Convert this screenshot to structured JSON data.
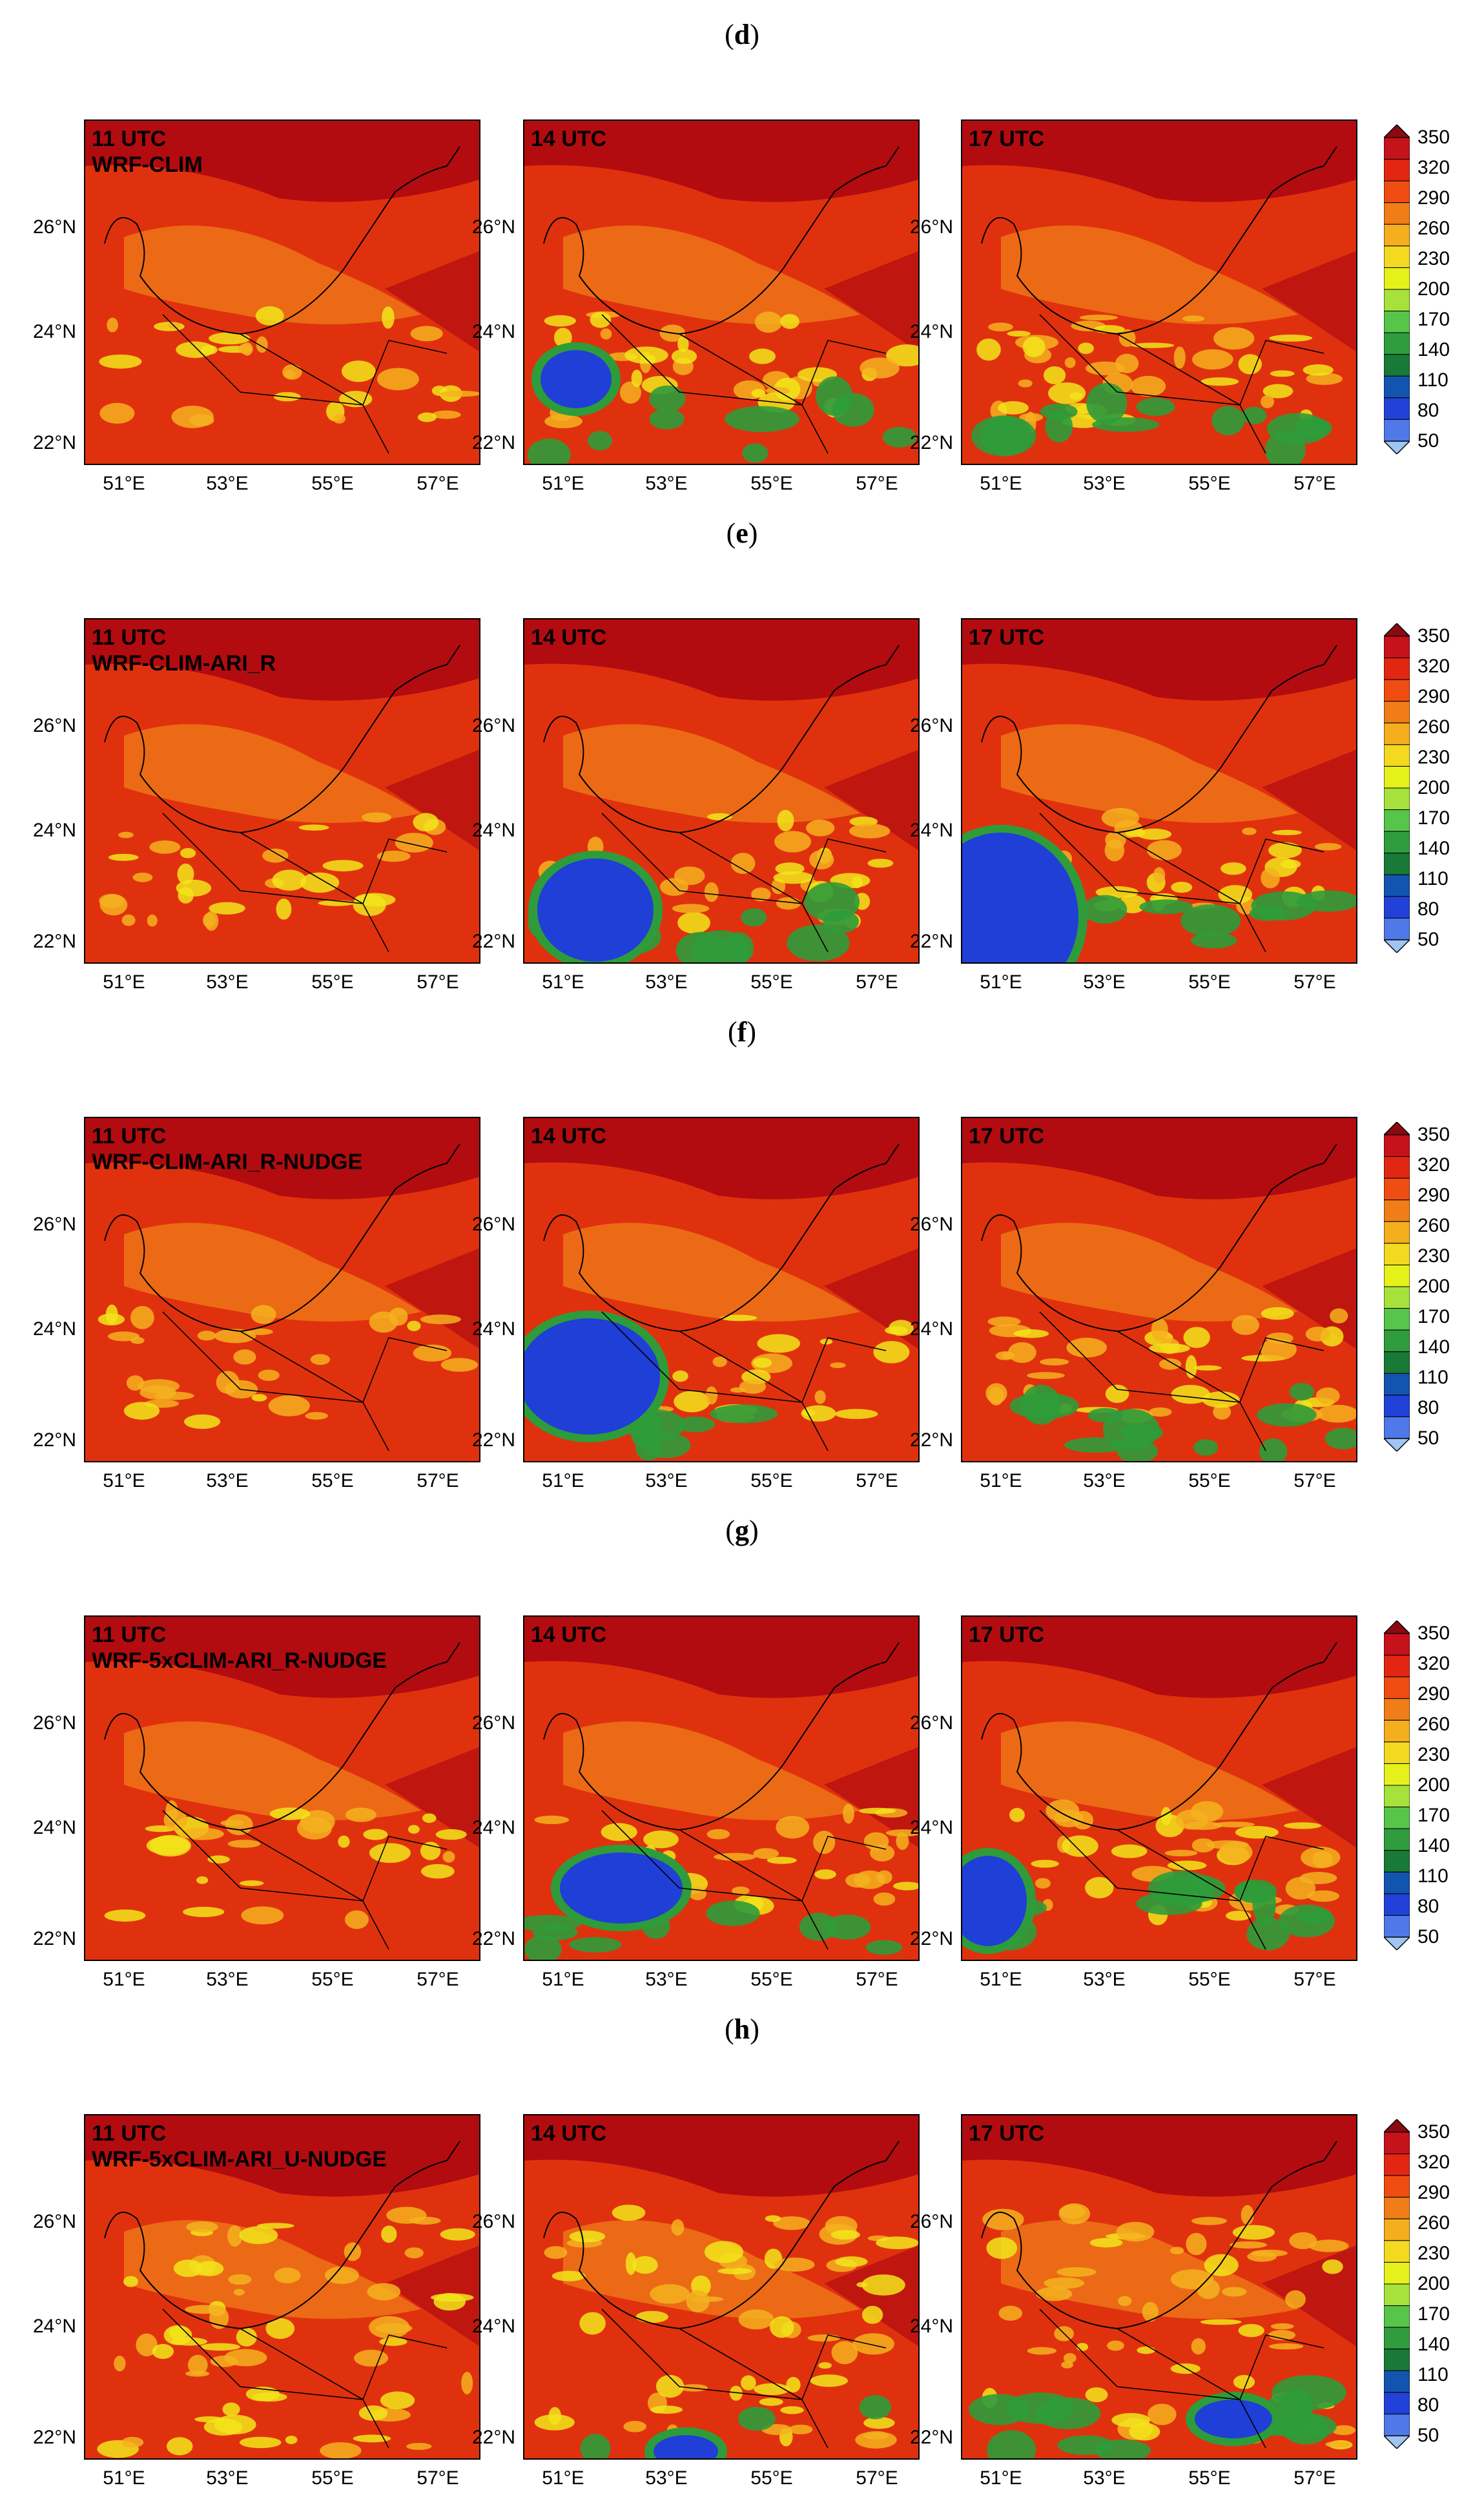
{
  "colors": {
    "warm": "#e0310e",
    "hot": "#a90610",
    "mid": "#ef5a16",
    "orange": "#f07d18",
    "yellow": "#f2e51a",
    "green": "#2e9c3a",
    "blue": "#1f3fd6",
    "lightblue": "#7fb5ec"
  },
  "colorbar": {
    "labels": [
      "350",
      "320",
      "290",
      "260",
      "230",
      "200",
      "170",
      "140",
      "110",
      "80",
      "50"
    ],
    "colors": [
      "#8b0a12",
      "#c5121b",
      "#e32612",
      "#ef4d12",
      "#f07d18",
      "#f5ae1e",
      "#f3da20",
      "#e6f11b",
      "#a6e23b",
      "#56c54a",
      "#2f9d3e",
      "#187a36",
      "#1255b0",
      "#2141d8",
      "#4f78e8",
      "#9fc6f2"
    ]
  },
  "axes": {
    "y_ticks": [
      "26°N",
      "24°N",
      "22°N"
    ],
    "x_ticks": [
      "51°E",
      "53°E",
      "55°E",
      "57°E"
    ]
  },
  "rows": [
    {
      "label": "d",
      "panels": [
        {
          "time": "11 UTC",
          "name": "WRF-CLIM"
        },
        {
          "time": "14 UTC",
          "name": ""
        },
        {
          "time": "17 UTC",
          "name": ""
        }
      ]
    },
    {
      "label": "e",
      "panels": [
        {
          "time": "11 UTC",
          "name": "WRF-CLIM-ARI_R"
        },
        {
          "time": "14 UTC",
          "name": ""
        },
        {
          "time": "17 UTC",
          "name": ""
        }
      ]
    },
    {
      "label": "f",
      "panels": [
        {
          "time": "11 UTC",
          "name": "WRF-CLIM-ARI_R-NUDGE"
        },
        {
          "time": "14 UTC",
          "name": ""
        },
        {
          "time": "17 UTC",
          "name": ""
        }
      ]
    },
    {
      "label": "g",
      "panels": [
        {
          "time": "11 UTC",
          "name": "WRF-5xCLIM-ARI_R-NUDGE"
        },
        {
          "time": "14 UTC",
          "name": ""
        },
        {
          "time": "17 UTC",
          "name": ""
        }
      ]
    },
    {
      "label": "h",
      "panels": [
        {
          "time": "11 UTC",
          "name": "WRF-5xCLIM-ARI_U-NUDGE"
        },
        {
          "time": "14 UTC",
          "name": ""
        },
        {
          "time": "17 UTC",
          "name": ""
        }
      ]
    }
  ]
}
